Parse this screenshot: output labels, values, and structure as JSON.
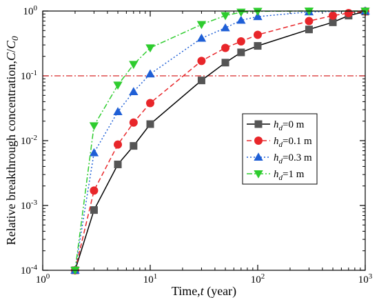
{
  "chart_data": {
    "type": "line",
    "xscale": "log",
    "yscale": "log",
    "xlim": [
      1,
      1000
    ],
    "ylim": [
      0.0001,
      1
    ],
    "xlabel": {
      "prefix": "Time,",
      "var": "t",
      "suffix": " (year)"
    },
    "ylabel": {
      "prefix": "Relative breakthrough concentration,",
      "var": "C",
      "sep": "/",
      "var2": "C",
      "sub2": "0"
    },
    "xticks": [
      {
        "value": 1,
        "base": "10",
        "exp": "0"
      },
      {
        "value": 10,
        "base": "10",
        "exp": "1"
      },
      {
        "value": 100,
        "base": "10",
        "exp": "2"
      },
      {
        "value": 1000,
        "base": "10",
        "exp": "3"
      }
    ],
    "yticks": [
      {
        "value": 0.0001,
        "base": "10",
        "exp": "-4"
      },
      {
        "value": 0.001,
        "base": "10",
        "exp": "-3"
      },
      {
        "value": 0.01,
        "base": "10",
        "exp": "-2"
      },
      {
        "value": 0.1,
        "base": "10",
        "exp": "-1"
      },
      {
        "value": 1,
        "base": "10",
        "exp": "0"
      }
    ],
    "reference_line": {
      "y": 0.1,
      "color": "#d62728",
      "style": "dash-dot"
    },
    "legend_position": "center-right",
    "series": [
      {
        "name": {
          "var": "h",
          "sub": "d",
          "rest": "=0 m"
        },
        "color": "#000000",
        "marker_color": "#555555",
        "marker": "square",
        "dash": "solid",
        "points": [
          [
            2,
            0.0001
          ],
          [
            3,
            0.00085
          ],
          [
            5,
            0.0043
          ],
          [
            7,
            0.0083
          ],
          [
            10,
            0.018
          ],
          [
            30,
            0.085
          ],
          [
            50,
            0.16
          ],
          [
            70,
            0.23
          ],
          [
            100,
            0.29
          ],
          [
            300,
            0.52
          ],
          [
            500,
            0.67
          ],
          [
            700,
            0.85
          ],
          [
            1000,
            0.98
          ]
        ]
      },
      {
        "name": {
          "var": "h",
          "sub": "d",
          "rest": "=0.1 m"
        },
        "color": "#e8262a",
        "marker_color": "#e8262a",
        "marker": "circle",
        "dash": "dashed",
        "points": [
          [
            2,
            0.0001
          ],
          [
            3,
            0.0017
          ],
          [
            5,
            0.0087
          ],
          [
            7,
            0.019
          ],
          [
            10,
            0.038
          ],
          [
            30,
            0.17
          ],
          [
            50,
            0.27
          ],
          [
            70,
            0.34
          ],
          [
            100,
            0.43
          ],
          [
            300,
            0.7
          ],
          [
            500,
            0.85
          ],
          [
            700,
            0.93
          ],
          [
            1000,
            0.99
          ]
        ]
      },
      {
        "name": {
          "var": "h",
          "sub": "d",
          "rest": "=0.3 m"
        },
        "color": "#1f5fd6",
        "marker_color": "#1f5fd6",
        "marker": "triangle-up",
        "dash": "dotted",
        "points": [
          [
            2,
            0.0001
          ],
          [
            3,
            0.0065
          ],
          [
            5,
            0.028
          ],
          [
            7,
            0.057
          ],
          [
            10,
            0.107
          ],
          [
            30,
            0.38
          ],
          [
            50,
            0.55
          ],
          [
            70,
            0.72
          ],
          [
            100,
            0.82
          ],
          [
            300,
            0.97
          ],
          [
            1000,
            1.0
          ]
        ]
      },
      {
        "name": {
          "var": "h",
          "sub": "d",
          "rest": "=1 m"
        },
        "color": "#2ecc2e",
        "marker_color": "#2ecc2e",
        "marker": "triangle-down",
        "dash": "dash-dot",
        "points": [
          [
            2,
            0.0001
          ],
          [
            3,
            0.017
          ],
          [
            5,
            0.072
          ],
          [
            7,
            0.15
          ],
          [
            10,
            0.27
          ],
          [
            30,
            0.62
          ],
          [
            50,
            0.85
          ],
          [
            70,
            0.96
          ],
          [
            100,
            0.99
          ],
          [
            300,
            1.0
          ],
          [
            1000,
            1.0
          ]
        ]
      }
    ]
  }
}
